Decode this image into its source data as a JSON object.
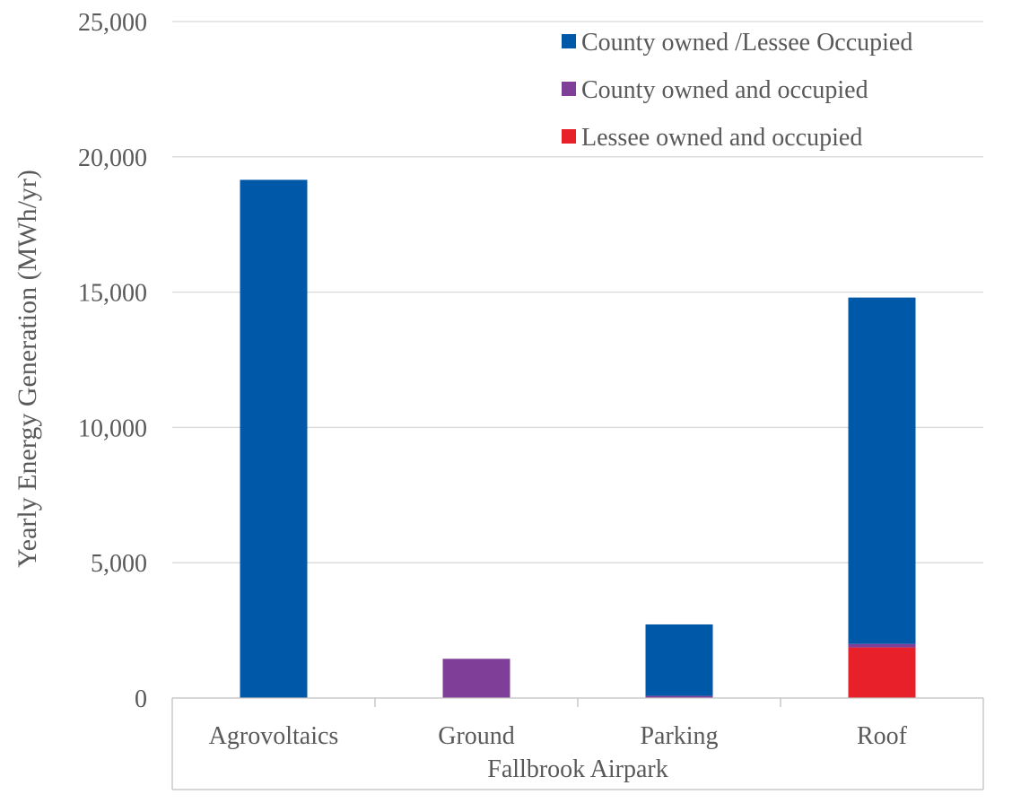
{
  "chart_data": {
    "type": "bar",
    "stacked": true,
    "categories": [
      "Agrovoltaics",
      "Ground",
      "Parking",
      "Roof"
    ],
    "group_label": "Fallbrook Airpark",
    "series": [
      {
        "name": "Lessee owned and occupied",
        "color": "#e8202a",
        "values": [
          0,
          0,
          0,
          1870
        ]
      },
      {
        "name": "County owned and occupied",
        "color": "#7f3f98",
        "values": [
          0,
          1450,
          80,
          130
        ]
      },
      {
        "name": "County owned /Lessee Occupied",
        "color": "#0059a8",
        "values": [
          19150,
          0,
          2640,
          12800
        ]
      }
    ],
    "legend_order": [
      "County owned /Lessee Occupied",
      "County owned and occupied",
      "Lessee owned and occupied"
    ],
    "legend_position": "top-right",
    "ylabel": "Yearly Energy Generation (MWh/yr)",
    "ylim": [
      0,
      25000
    ],
    "yticks": [
      0,
      5000,
      10000,
      15000,
      20000,
      25000
    ],
    "ytick_labels": [
      "0",
      "5,000",
      "10,000",
      "15,000",
      "20,000",
      "25,000"
    ],
    "grid": true
  }
}
